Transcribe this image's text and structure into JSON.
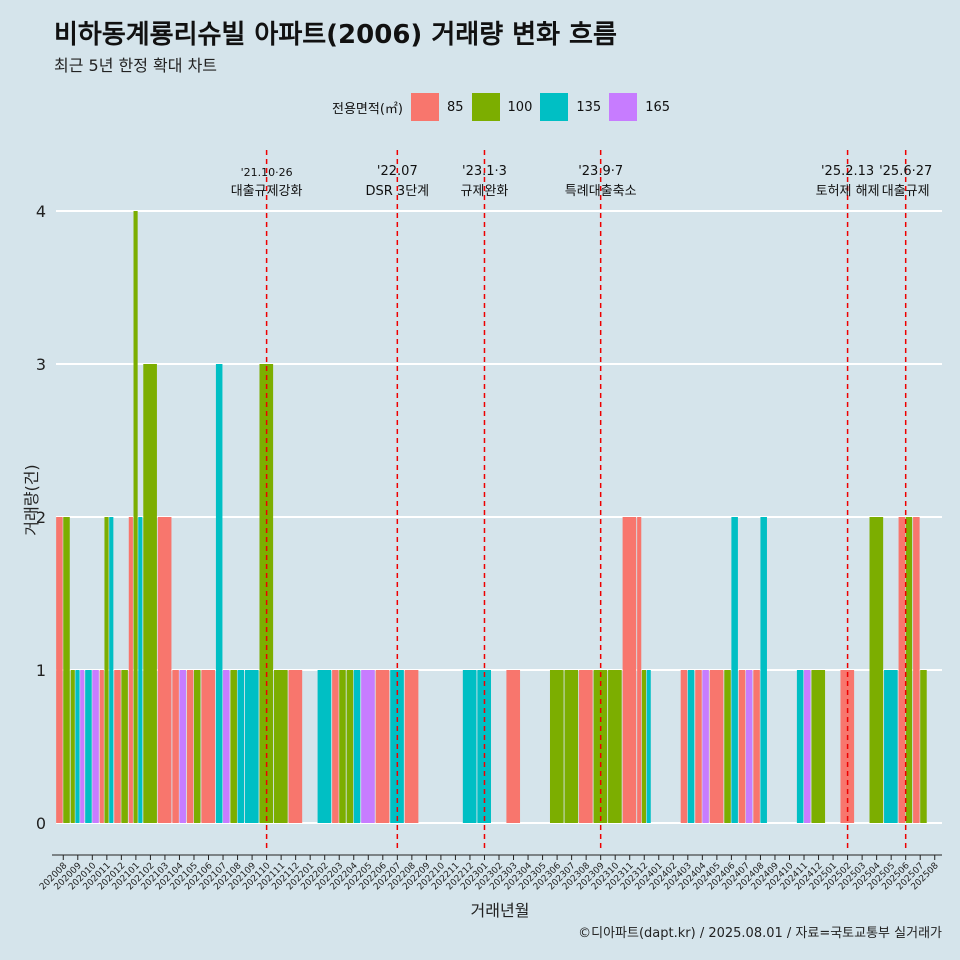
{
  "title": "비하동계룡리슈빌 아파트(2006) 거래량 변화 흐름",
  "subtitle": "최근 5년 한정 확대 차트",
  "caption": "©디아파트(dapt.kr) / 2025.08.01 / 자료=국토교통부 실거래가",
  "legend": {
    "title": "전용면적(㎡)",
    "items": [
      {
        "label": "85",
        "color": "#F8766D"
      },
      {
        "label": "100",
        "color": "#7CAE00"
      },
      {
        "label": "135",
        "color": "#00BFC4"
      },
      {
        "label": "165",
        "color": "#C77CFF"
      }
    ]
  },
  "chart_data": {
    "type": "bar",
    "xlabel": "거래년월",
    "ylabel": "거래량(건)",
    "ylim": [
      0,
      4
    ],
    "yticks": [
      0,
      1,
      2,
      3,
      4
    ],
    "grid": true,
    "legend_position": "top",
    "categories": [
      "202008",
      "202009",
      "202010",
      "202011",
      "202012",
      "202101",
      "202102",
      "202103",
      "202104",
      "202105",
      "202106",
      "202107",
      "202108",
      "202109",
      "202110",
      "202111",
      "202112",
      "202201",
      "202202",
      "202203",
      "202204",
      "202205",
      "202206",
      "202207",
      "202208",
      "202209",
      "202210",
      "202211",
      "202212",
      "202301",
      "202302",
      "202303",
      "202304",
      "202305",
      "202306",
      "202307",
      "202308",
      "202309",
      "202310",
      "202311",
      "202312",
      "202401",
      "202402",
      "202403",
      "202404",
      "202405",
      "202406",
      "202407",
      "202408",
      "202409",
      "202410",
      "202411",
      "202412",
      "202501",
      "202502",
      "202503",
      "202504",
      "202505",
      "202506",
      "202507",
      "202508"
    ],
    "series": [
      {
        "name": "85",
        "color": "#F8766D",
        "values": [
          2,
          0,
          0,
          1,
          1,
          2,
          0,
          2,
          1,
          1,
          1,
          0,
          0,
          0,
          0,
          0,
          1,
          0,
          0,
          1,
          0,
          0,
          1,
          0,
          1,
          0,
          0,
          0,
          0,
          0,
          0,
          1,
          0,
          0,
          0,
          0,
          1,
          0,
          0,
          2,
          2,
          0,
          0,
          1,
          1,
          1,
          0,
          1,
          1,
          0,
          0,
          0,
          0,
          0,
          1,
          0,
          0,
          0,
          2,
          2,
          0
        ]
      },
      {
        "name": "100",
        "color": "#7CAE00",
        "values": [
          2,
          1,
          0,
          2,
          1,
          4,
          3,
          0,
          0,
          1,
          0,
          0,
          1,
          0,
          3,
          1,
          0,
          0,
          0,
          1,
          1,
          0,
          0,
          0,
          0,
          0,
          0,
          0,
          0,
          0,
          0,
          0,
          0,
          0,
          1,
          1,
          0,
          1,
          1,
          0,
          1,
          0,
          0,
          0,
          0,
          0,
          1,
          0,
          0,
          0,
          0,
          0,
          1,
          0,
          0,
          0,
          2,
          0,
          2,
          1,
          0
        ]
      },
      {
        "name": "135",
        "color": "#00BFC4",
        "values": [
          0,
          1,
          1,
          2,
          0,
          2,
          0,
          0,
          0,
          0,
          0,
          3,
          1,
          1,
          0,
          0,
          0,
          0,
          1,
          0,
          1,
          0,
          0,
          1,
          0,
          0,
          0,
          0,
          1,
          1,
          0,
          0,
          0,
          0,
          0,
          0,
          0,
          0,
          0,
          0,
          1,
          0,
          0,
          1,
          0,
          0,
          2,
          0,
          2,
          0,
          0,
          1,
          0,
          0,
          0,
          0,
          0,
          1,
          0,
          0,
          0
        ]
      },
      {
        "name": "165",
        "color": "#C77CFF",
        "values": [
          0,
          1,
          1,
          0,
          0,
          0,
          0,
          0,
          1,
          0,
          0,
          1,
          0,
          0,
          0,
          0,
          0,
          0,
          0,
          0,
          0,
          1,
          0,
          0,
          0,
          0,
          0,
          0,
          0,
          0,
          0,
          0,
          0,
          0,
          0,
          0,
          0,
          0,
          0,
          0,
          0,
          0,
          0,
          0,
          1,
          0,
          0,
          1,
          0,
          0,
          0,
          1,
          0,
          0,
          0,
          0,
          0,
          0,
          0,
          0,
          0
        ]
      }
    ],
    "annotations": [
      {
        "x": "202110",
        "date": "'21.10·26",
        "text": "대출규제강화"
      },
      {
        "x": "202207",
        "date": "'22.07",
        "text": "DSR 3단계"
      },
      {
        "x": "202301",
        "date": "'23.1·3",
        "text": "규제완화"
      },
      {
        "x": "202309",
        "date": "'23.9·7",
        "text": "특례대출축소"
      },
      {
        "x": "202502",
        "date": "'25.2.13",
        "text": "토허제 해제"
      },
      {
        "x": "202506",
        "date": "'25.6·27",
        "text": "대출규제"
      }
    ]
  }
}
